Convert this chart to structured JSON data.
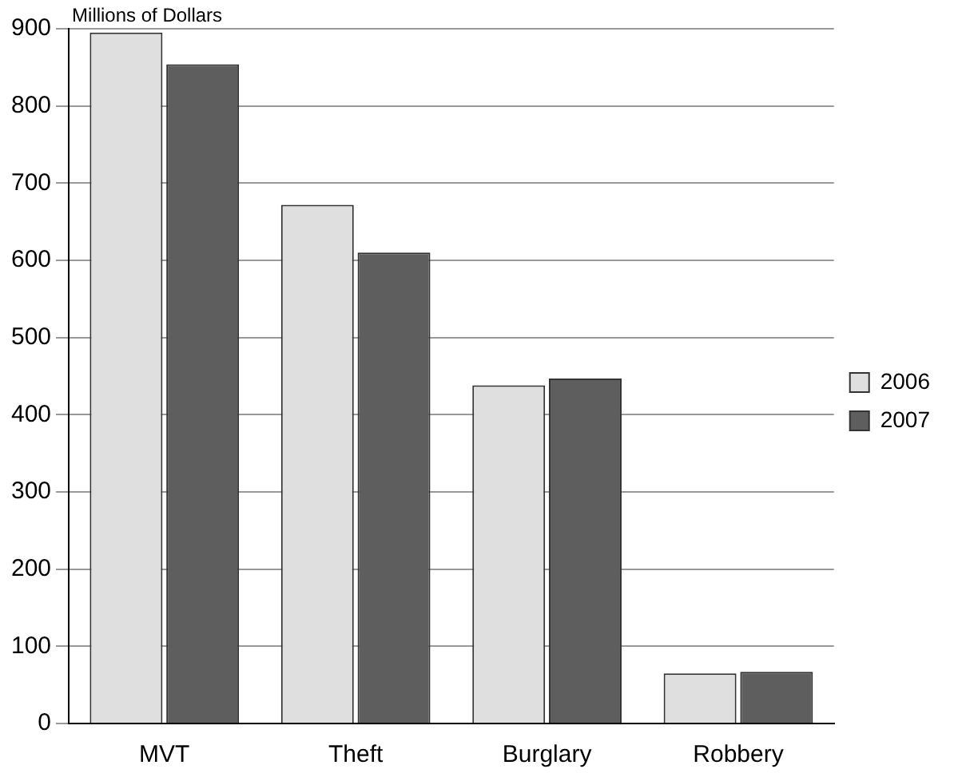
{
  "chart_data": {
    "type": "bar",
    "ylabel": "Millions of Dollars",
    "categories": [
      "MVT",
      "Theft",
      "Burglary",
      "Robbery"
    ],
    "series": [
      {
        "name": "2006",
        "color": "#e0dfdf",
        "values": [
          895,
          672,
          438,
          65
        ]
      },
      {
        "name": "2007",
        "color": "#5e5e5e",
        "values": [
          854,
          610,
          447,
          67
        ]
      }
    ],
    "ylim": [
      0,
      900
    ],
    "yticks": [
      0,
      100,
      200,
      300,
      400,
      500,
      600,
      700,
      800,
      900
    ],
    "grid": "y",
    "legend": "right"
  }
}
